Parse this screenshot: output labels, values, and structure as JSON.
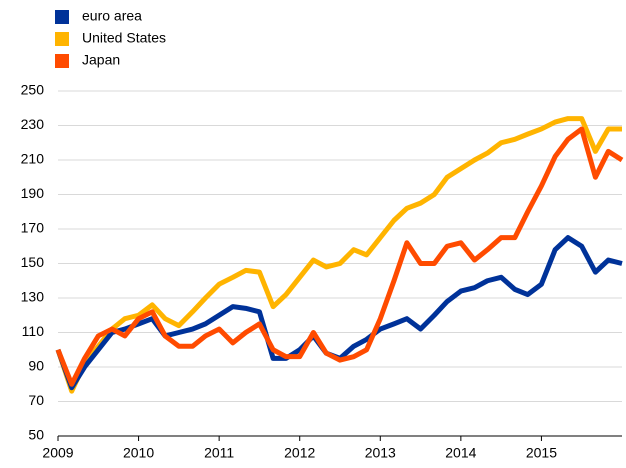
{
  "chart_data": {
    "type": "line",
    "x": [
      2009,
      2009.17,
      2009.33,
      2009.5,
      2009.67,
      2009.83,
      2010,
      2010.17,
      2010.33,
      2010.5,
      2010.67,
      2010.83,
      2011,
      2011.17,
      2011.33,
      2011.5,
      2011.67,
      2011.83,
      2012,
      2012.17,
      2012.33,
      2012.5,
      2012.67,
      2012.83,
      2013,
      2013.17,
      2013.33,
      2013.5,
      2013.67,
      2013.83,
      2014,
      2014.17,
      2014.33,
      2014.5,
      2014.67,
      2014.83,
      2015,
      2015.17,
      2015.33,
      2015.5,
      2015.67,
      2015.83,
      2016
    ],
    "series": [
      {
        "name": "euro area",
        "color": "#003299",
        "values": [
          100,
          78,
          90,
          100,
          110,
          112,
          115,
          118,
          108,
          110,
          112,
          115,
          120,
          125,
          124,
          122,
          95,
          95,
          100,
          108,
          98,
          95,
          102,
          106,
          112,
          115,
          118,
          112,
          120,
          128,
          134,
          136,
          140,
          142,
          135,
          132,
          138,
          158,
          165,
          160,
          145,
          152,
          150
        ]
      },
      {
        "name": "United States",
        "color": "#ffb400",
        "values": [
          100,
          76,
          92,
          102,
          112,
          118,
          120,
          126,
          118,
          114,
          122,
          130,
          138,
          142,
          146,
          145,
          125,
          132,
          142,
          152,
          148,
          150,
          158,
          155,
          165,
          175,
          182,
          185,
          190,
          200,
          205,
          210,
          214,
          220,
          222,
          225,
          228,
          232,
          234,
          234,
          215,
          228,
          228
        ]
      },
      {
        "name": "Japan",
        "color": "#ff4b00",
        "values": [
          100,
          80,
          95,
          108,
          112,
          108,
          118,
          122,
          108,
          102,
          102,
          108,
          112,
          104,
          110,
          115,
          100,
          96,
          96,
          110,
          98,
          94,
          96,
          100,
          118,
          140,
          162,
          150,
          150,
          160,
          162,
          152,
          158,
          165,
          165,
          180,
          195,
          212,
          222,
          228,
          200,
          215,
          210
        ]
      }
    ],
    "xlim": [
      2009,
      2016
    ],
    "xticks": [
      2009,
      2010,
      2011,
      2012,
      2013,
      2014,
      2015
    ],
    "ylim": [
      50,
      250
    ],
    "yticks": [
      50,
      70,
      90,
      110,
      130,
      150,
      170,
      190,
      210,
      230,
      250
    ],
    "grid": true,
    "legend": "top-left"
  }
}
